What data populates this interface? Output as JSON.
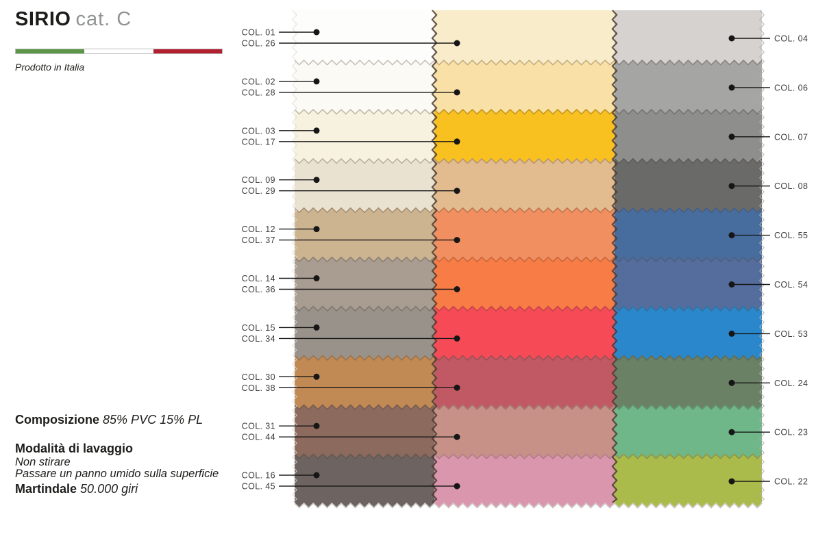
{
  "header": {
    "title": "SIRIO",
    "category": "cat. C",
    "subtitle": "Prodotto in Italia",
    "flag": {
      "green": "#5a9548",
      "white": "#ffffff",
      "red": "#b22030"
    }
  },
  "info": {
    "composizione_label": "Composizione",
    "composizione_value": "85% PVC 15% PL",
    "lavaggio_label": "Modalità di lavaggio",
    "lavaggio_line1": "Non stirare",
    "lavaggio_line2": "Passare un panno umido sulla superficie",
    "martindale_label": "Martindale",
    "martindale_value": "50.000 giri"
  },
  "swatch_board": {
    "leader_color": "#161616",
    "label_color": "#3c3c3b",
    "edge_shadow_color": "#4a3c32",
    "rows": [
      {
        "left": {
          "label": "COL. 01",
          "color": "#fdfdfb"
        },
        "middle": {
          "label": "COL. 26",
          "color": "#f8ecca"
        },
        "right": {
          "label": "COL. 04",
          "color": "#d6d2cf"
        }
      },
      {
        "left": {
          "label": "COL. 02",
          "color": "#fbfaf4"
        },
        "middle": {
          "label": "COL. 28",
          "color": "#f9e0a6"
        },
        "right": {
          "label": "COL. 06",
          "color": "#a5a5a4"
        }
      },
      {
        "left": {
          "label": "COL. 03",
          "color": "#f7f2e0"
        },
        "middle": {
          "label": "COL. 17",
          "color": "#f8c120"
        },
        "right": {
          "label": "COL. 07",
          "color": "#8e8e8d"
        }
      },
      {
        "left": {
          "label": "COL. 09",
          "color": "#eae2d1"
        },
        "middle": {
          "label": "COL. 29",
          "color": "#e2bc8e"
        },
        "right": {
          "label": "COL. 08",
          "color": "#6a6a68"
        }
      },
      {
        "left": {
          "label": "COL. 12",
          "color": "#cdb491"
        },
        "middle": {
          "label": "COL. 37",
          "color": "#f18f60"
        },
        "right": {
          "label": "COL. 55",
          "color": "#476d9f"
        }
      },
      {
        "left": {
          "label": "COL. 14",
          "color": "#a99d91"
        },
        "middle": {
          "label": "COL. 36",
          "color": "#f87c45"
        },
        "right": {
          "label": "COL. 54",
          "color": "#546d9d"
        }
      },
      {
        "left": {
          "label": "COL. 15",
          "color": "#98928b"
        },
        "middle": {
          "label": "COL. 34",
          "color": "#f64b57"
        },
        "right": {
          "label": "COL. 53",
          "color": "#2b87cc"
        }
      },
      {
        "left": {
          "label": "COL. 30",
          "color": "#c18a54"
        },
        "middle": {
          "label": "COL. 38",
          "color": "#c15965"
        },
        "right": {
          "label": "COL. 24",
          "color": "#6a8165"
        }
      },
      {
        "left": {
          "label": "COL. 31",
          "color": "#8d6a5e"
        },
        "middle": {
          "label": "COL. 44",
          "color": "#c79188"
        },
        "right": {
          "label": "COL. 23",
          "color": "#6fb689"
        }
      },
      {
        "left": {
          "label": "COL. 16",
          "color": "#6d6461"
        },
        "middle": {
          "label": "COL. 45",
          "color": "#da96ac"
        },
        "right": {
          "label": "COL. 22",
          "color": "#abbb4b"
        }
      }
    ]
  }
}
